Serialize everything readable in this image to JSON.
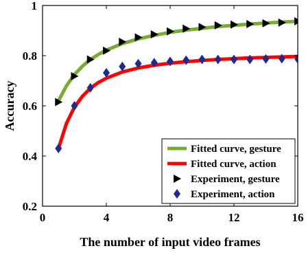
{
  "chart_data": {
    "type": "line",
    "xlabel": "The number of input video frames",
    "ylabel": "Accuracy",
    "xlim": [
      0,
      16
    ],
    "ylim": [
      0.2,
      1.0
    ],
    "x_ticks": [
      0,
      4,
      8,
      12,
      16
    ],
    "y_ticks": [
      0.2,
      0.4,
      0.6,
      0.8,
      1.0
    ],
    "x_tick_labels": [
      "0",
      "4",
      "8",
      "12",
      "16"
    ],
    "y_tick_labels": [
      "0.2",
      "0.4",
      "0.6",
      "0.8",
      "1"
    ],
    "grid": false,
    "legend_position": "bottom-right",
    "series": [
      {
        "name": "Fitted curve, gesture",
        "kind": "line",
        "color": "#77ac30",
        "x": [
          1,
          1.5,
          2,
          2.5,
          3,
          3.5,
          4,
          5,
          6,
          7,
          8,
          9,
          10,
          11,
          12,
          13,
          14,
          15,
          16
        ],
        "values": [
          0.62,
          0.68,
          0.725,
          0.758,
          0.785,
          0.805,
          0.822,
          0.848,
          0.867,
          0.881,
          0.893,
          0.902,
          0.909,
          0.916,
          0.921,
          0.926,
          0.93,
          0.934,
          0.937
        ]
      },
      {
        "name": "Fitted curve, action",
        "kind": "line",
        "color": "#ff0000",
        "x": [
          1,
          1.5,
          2,
          2.5,
          3,
          3.5,
          4,
          5,
          6,
          7,
          8,
          9,
          10,
          11,
          12,
          13,
          14,
          15,
          16
        ],
        "values": [
          0.43,
          0.53,
          0.595,
          0.638,
          0.67,
          0.693,
          0.71,
          0.735,
          0.751,
          0.762,
          0.77,
          0.776,
          0.781,
          0.785,
          0.788,
          0.791,
          0.793,
          0.795,
          0.797
        ]
      },
      {
        "name": "Experiment, gesture",
        "kind": "marker",
        "marker": "triangle-right",
        "color": "#000000",
        "x": [
          1,
          2,
          3,
          4,
          5,
          6,
          7,
          8,
          9,
          10,
          11,
          12,
          13,
          14,
          15,
          16
        ],
        "values": [
          0.615,
          0.718,
          0.785,
          0.82,
          0.855,
          0.873,
          0.885,
          0.897,
          0.908,
          0.914,
          0.921,
          0.924,
          0.926,
          0.929,
          0.932,
          0.937
        ]
      },
      {
        "name": "Experiment, action",
        "kind": "marker",
        "marker": "diamond",
        "color": "#1f2a8c",
        "x": [
          1,
          2,
          3,
          4,
          5,
          6,
          7,
          8,
          9,
          10,
          11,
          12,
          13,
          14,
          15,
          16
        ],
        "values": [
          0.43,
          0.6,
          0.672,
          0.732,
          0.757,
          0.768,
          0.772,
          0.777,
          0.782,
          0.785,
          0.785,
          0.785,
          0.785,
          0.787,
          0.788,
          0.787
        ]
      }
    ]
  }
}
